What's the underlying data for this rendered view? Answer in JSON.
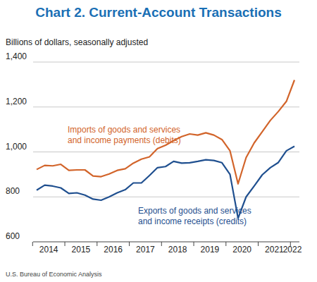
{
  "chart_data": {
    "type": "line",
    "title": "Chart 2. Current-Account Transactions",
    "subtitle": "Billions of dollars, seasonally adjusted",
    "source": "U.S. Bureau of Economic Analysis",
    "categories": [
      "2014",
      null,
      null,
      null,
      "2015",
      null,
      null,
      null,
      "2016",
      null,
      null,
      null,
      "2017",
      null,
      null,
      null,
      "2018",
      null,
      null,
      null,
      "2019",
      null,
      null,
      null,
      "2020",
      null,
      null,
      null,
      "2021",
      null,
      null,
      null,
      "2022"
    ],
    "series": [
      {
        "name": "Imports of goods and services\nand income payments (debits)",
        "color": "#d2642a",
        "values": [
          922,
          940,
          938,
          945,
          918,
          920,
          920,
          893,
          890,
          902,
          918,
          925,
          950,
          968,
          978,
          1015,
          1030,
          1050,
          1068,
          1080,
          1075,
          1085,
          1075,
          1055,
          1005,
          858,
          975,
          1040,
          1090,
          1140,
          1180,
          1225,
          1320
        ]
      },
      {
        "name": "Exports of goods and services\nand income receipts (credits)",
        "color": "#1f4f8f",
        "values": [
          830,
          852,
          848,
          840,
          815,
          818,
          808,
          790,
          785,
          800,
          818,
          832,
          862,
          862,
          895,
          930,
          935,
          958,
          950,
          952,
          958,
          965,
          962,
          952,
          900,
          705,
          800,
          848,
          898,
          930,
          953,
          1005,
          1025
        ]
      }
    ],
    "ylim": [
      600,
      1400
    ],
    "yticks": [
      600,
      800,
      {
        "value": 1000,
        "label": "1,000"
      },
      {
        "value": 1200,
        "label": "1,200"
      },
      {
        "value": 1400,
        "label": "1,400"
      }
    ],
    "grid": true
  }
}
